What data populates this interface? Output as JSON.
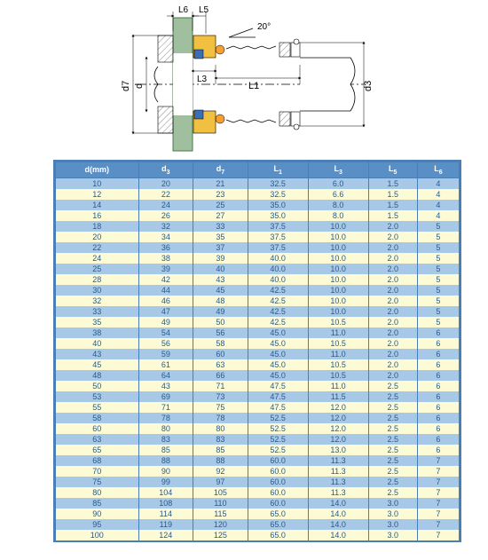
{
  "diagram": {
    "labels": {
      "L6": "L6",
      "L5": "L5",
      "L3": "L3",
      "L1": "L1",
      "d": "d",
      "d3": "d3",
      "d7": "d7",
      "angle": "20°"
    },
    "colors": {
      "shaft": "#9fbf9f",
      "seal_body": "#f2c040",
      "ring_blue": "#3a6fb5",
      "ring_orange": "#f5a030",
      "hatch": "#888888",
      "outline": "#000000",
      "bg": "#ffffff"
    }
  },
  "table": {
    "columns": [
      "d(mm)",
      "d3",
      "d7",
      "L1",
      "L3",
      "L5",
      "L6"
    ],
    "header_bg": "#5a8fc5",
    "header_fg": "#ffffff",
    "row_colors": [
      "#a8c8e8",
      "#fdfbd6"
    ],
    "text_color": "#2a5a8a",
    "border_color": "#4a7fb5",
    "rows": [
      [
        "10",
        "20",
        "21",
        "32.5",
        "6.0",
        "1.5",
        "4"
      ],
      [
        "12",
        "22",
        "23",
        "32.5",
        "6.6",
        "1.5",
        "4"
      ],
      [
        "14",
        "24",
        "25",
        "35.0",
        "8.0",
        "1.5",
        "4"
      ],
      [
        "16",
        "26",
        "27",
        "35.0",
        "8.0",
        "1.5",
        "4"
      ],
      [
        "18",
        "32",
        "33",
        "37.5",
        "10.0",
        "2.0",
        "5"
      ],
      [
        "20",
        "34",
        "35",
        "37.5",
        "10.0",
        "2.0",
        "5"
      ],
      [
        "22",
        "36",
        "37",
        "37.5",
        "10.0",
        "2.0",
        "5"
      ],
      [
        "24",
        "38",
        "39",
        "40.0",
        "10.0",
        "2.0",
        "5"
      ],
      [
        "25",
        "39",
        "40",
        "40.0",
        "10.0",
        "2.0",
        "5"
      ],
      [
        "28",
        "42",
        "43",
        "40.0",
        "10.0",
        "2.0",
        "5"
      ],
      [
        "30",
        "44",
        "45",
        "42.5",
        "10.0",
        "2.0",
        "5"
      ],
      [
        "32",
        "46",
        "48",
        "42.5",
        "10.0",
        "2.0",
        "5"
      ],
      [
        "33",
        "47",
        "49",
        "42.5",
        "10.0",
        "2.0",
        "5"
      ],
      [
        "35",
        "49",
        "50",
        "42.5",
        "10.5",
        "2.0",
        "5"
      ],
      [
        "38",
        "54",
        "56",
        "45.0",
        "11.0",
        "2.0",
        "6"
      ],
      [
        "40",
        "56",
        "58",
        "45.0",
        "10.5",
        "2.0",
        "6"
      ],
      [
        "43",
        "59",
        "60",
        "45.0",
        "11.0",
        "2.0",
        "6"
      ],
      [
        "45",
        "61",
        "63",
        "45.0",
        "10.5",
        "2.0",
        "6"
      ],
      [
        "48",
        "64",
        "66",
        "45.0",
        "10.5",
        "2.0",
        "6"
      ],
      [
        "50",
        "43",
        "71",
        "47.5",
        "11.0",
        "2.5",
        "6"
      ],
      [
        "53",
        "69",
        "73",
        "47.5",
        "11.5",
        "2.5",
        "6"
      ],
      [
        "55",
        "71",
        "75",
        "47.5",
        "12.0",
        "2.5",
        "6"
      ],
      [
        "58",
        "78",
        "78",
        "52.5",
        "12.0",
        "2.5",
        "6"
      ],
      [
        "60",
        "80",
        "80",
        "52.5",
        "12.0",
        "2.5",
        "6"
      ],
      [
        "63",
        "83",
        "83",
        "52.5",
        "12.0",
        "2.5",
        "6"
      ],
      [
        "65",
        "85",
        "85",
        "52.5",
        "13.0",
        "2.5",
        "6"
      ],
      [
        "68",
        "88",
        "88",
        "60.0",
        "11.3",
        "2.5",
        "7"
      ],
      [
        "70",
        "90",
        "92",
        "60.0",
        "11.3",
        "2.5",
        "7"
      ],
      [
        "75",
        "99",
        "97",
        "60.0",
        "11.3",
        "2.5",
        "7"
      ],
      [
        "80",
        "104",
        "105",
        "60.0",
        "11.3",
        "2.5",
        "7"
      ],
      [
        "85",
        "108",
        "110",
        "60.0",
        "14.0",
        "3.0",
        "7"
      ],
      [
        "90",
        "114",
        "115",
        "65.0",
        "14.0",
        "3.0",
        "7"
      ],
      [
        "95",
        "119",
        "120",
        "65.0",
        "14.0",
        "3.0",
        "7"
      ],
      [
        "100",
        "124",
        "125",
        "65.0",
        "14.0",
        "3.0",
        "7"
      ]
    ]
  }
}
